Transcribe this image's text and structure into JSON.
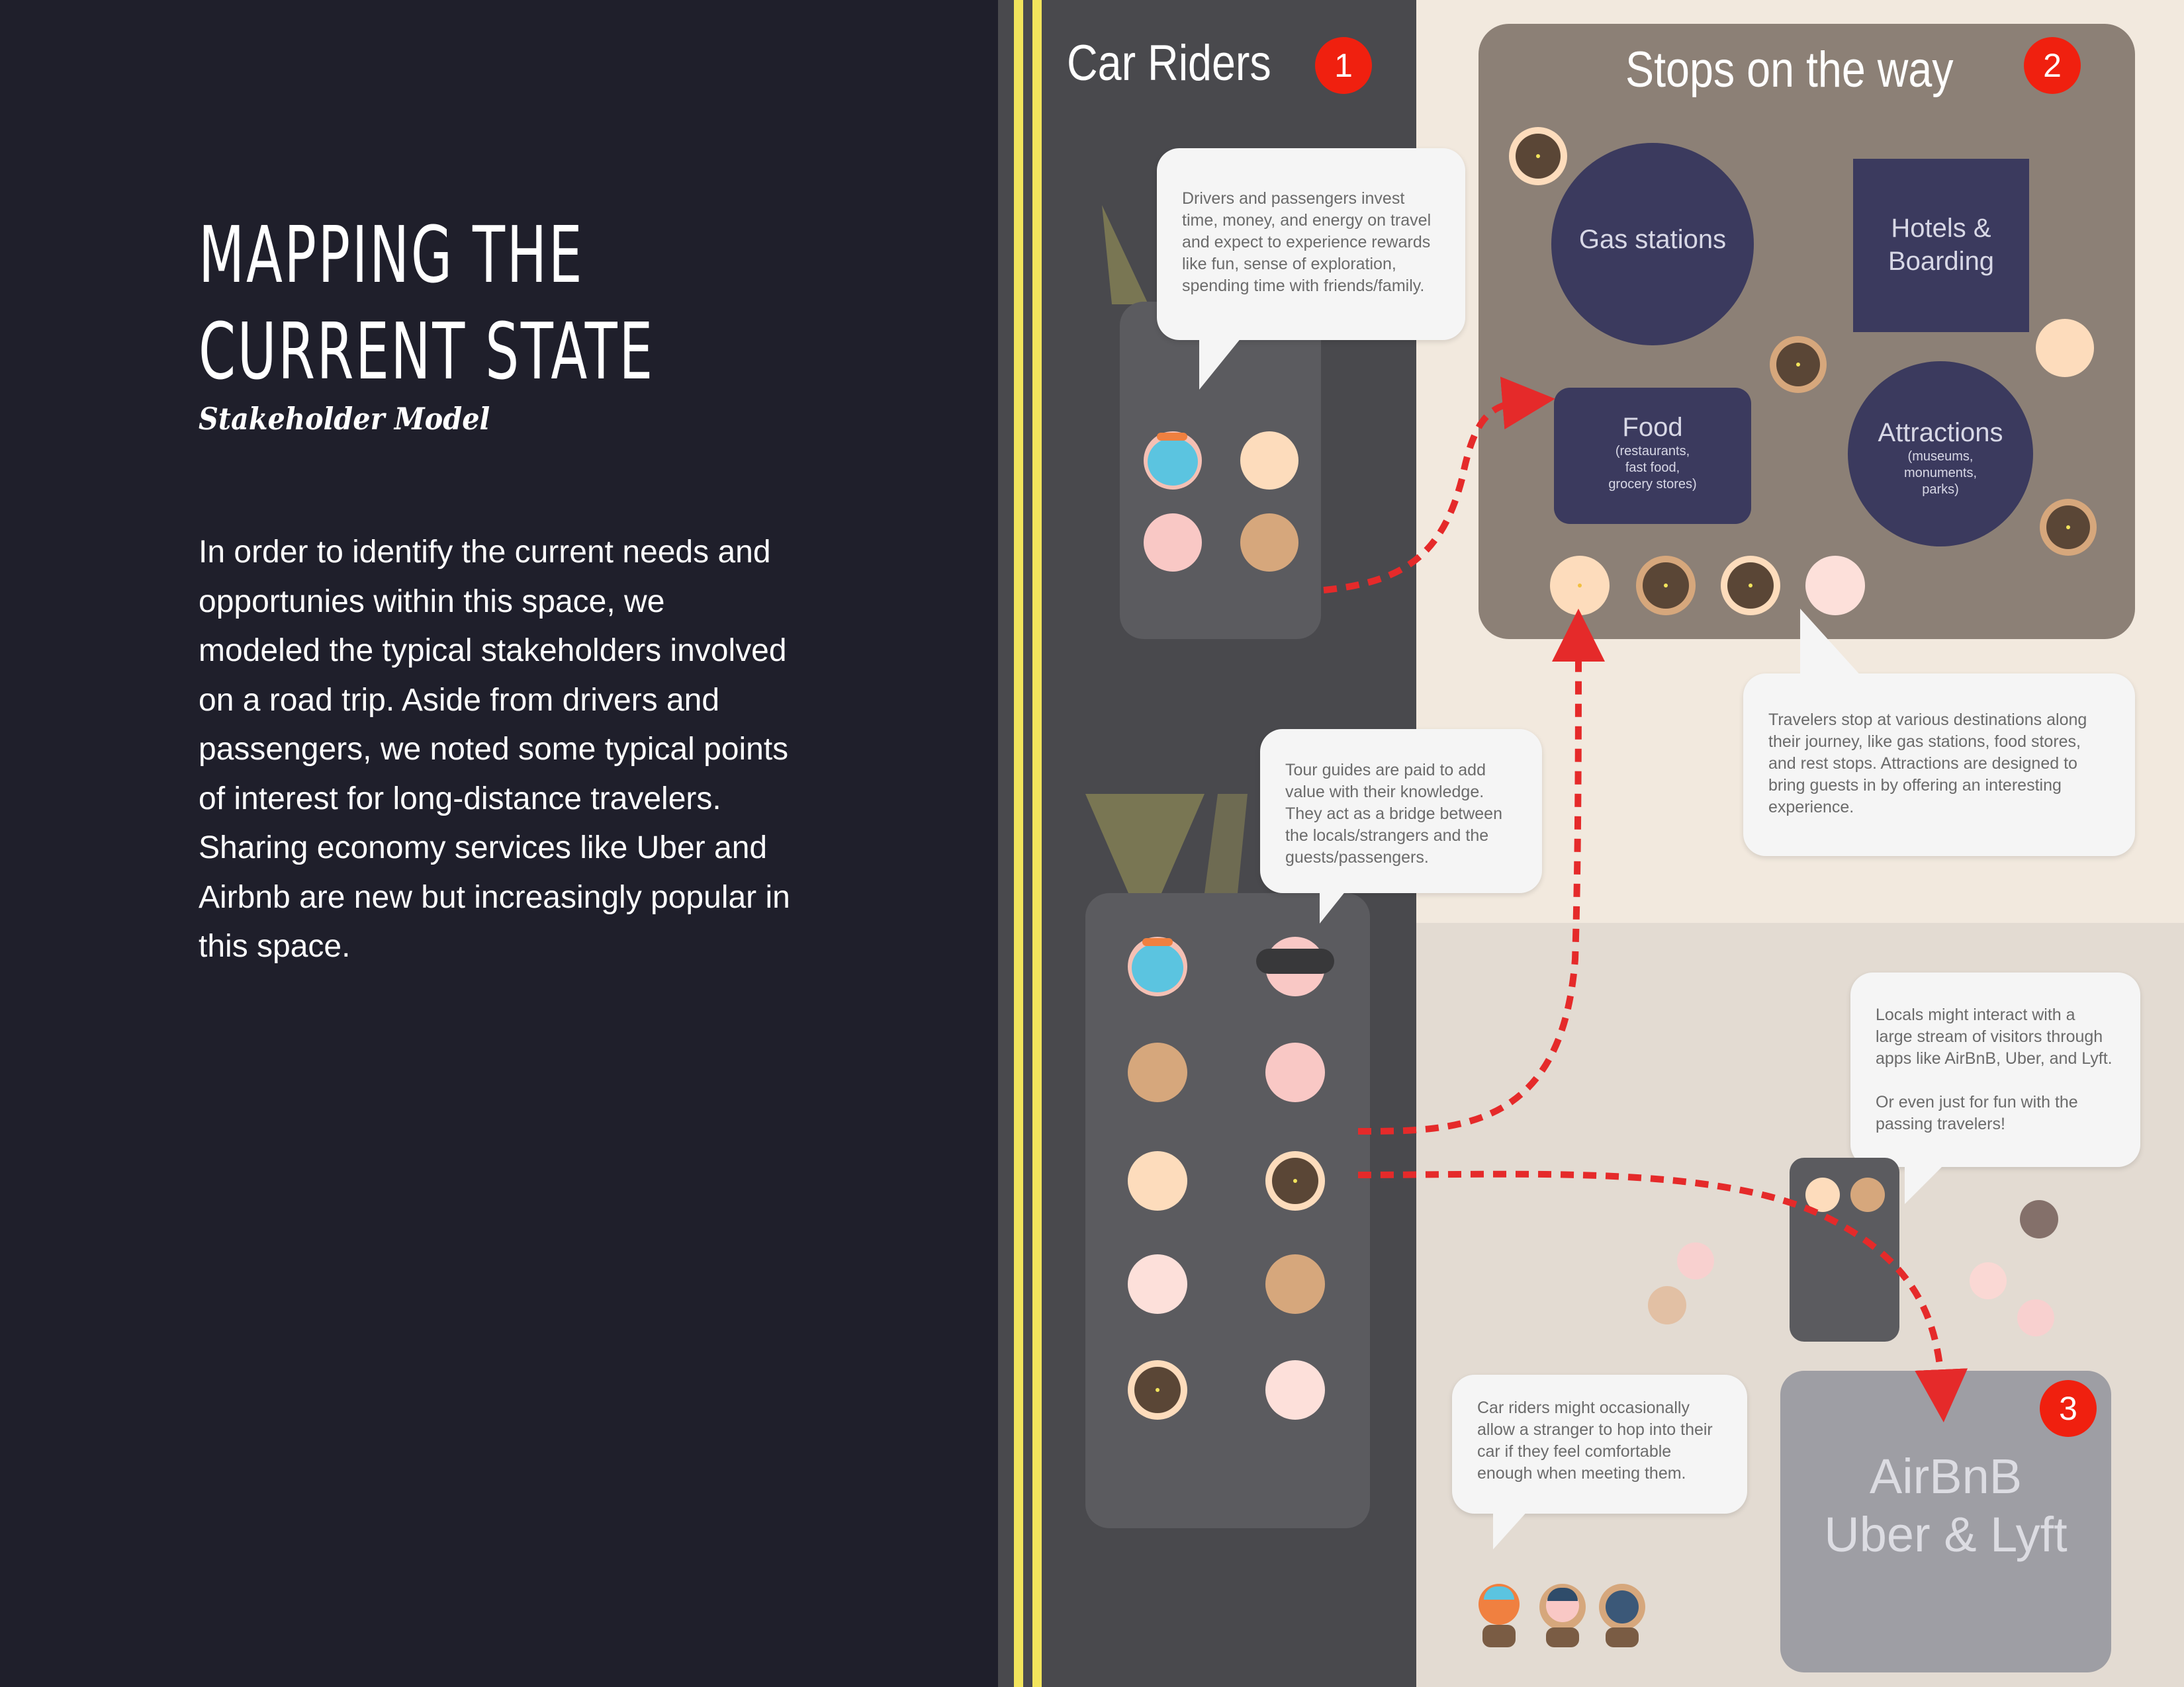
{
  "page": {
    "title_line1": "MAPPING THE",
    "title_line2": "CURRENT STATE",
    "subtitle": "Stakeholder Model",
    "body": "In order to identify the current needs and opportunies within this space, we modeled the typical stakeholders involved on a road trip. Aside from drivers and passengers, we noted some typical points of interest for long-distance travelers. Sharing economy services like Uber and Airbnb are new but increasingly popular in this space."
  },
  "sections": {
    "car_riders": {
      "label": "Car Riders",
      "badge": "1"
    },
    "stops": {
      "label": "Stops on the way",
      "badge": "2"
    },
    "sharing": {
      "label_line1": "AirBnB",
      "label_line2": "Uber & Lyft",
      "badge": "3"
    }
  },
  "stops": {
    "gas": "Gas stations",
    "hotels_line1": "Hotels &",
    "hotels_line2": "Boarding",
    "food": "Food",
    "food_sub1": "(restaurants,",
    "food_sub2": "fast food,",
    "food_sub3": "grocery stores)",
    "attractions": "Attractions",
    "attr_sub1": "(museums,",
    "attr_sub2": "monuments,",
    "attr_sub3": "parks)"
  },
  "bubbles": {
    "riders": "Drivers and passengers invest time, money, and energy on travel and expect to experience rewards like fun, sense of exploration, spending time with friends/family.",
    "guides": "Tour guides are paid to add value with their knowledge. They act as a bridge between the locals/strangers and the guests/passengers.",
    "travelers": "Travelers stop at various destinations along their journey, like gas stations, food stores, and rest stops. Attractions are designed to bring guests in by offering an interesting experience.",
    "locals_p1": "Locals might interact with a large stream of visitors through apps like AirBnB, Uber, and Lyft.",
    "locals_p2": "Or even just for fun with the passing travelers!",
    "strangers": "Car riders might occasionally allow a stranger to hop into their car if they feel comfortable enough when meeting them."
  },
  "colors": {
    "background_dark": "#1f1f2b",
    "road": "#49494d",
    "road_stripe": "#f2e45c",
    "cream": "#f2e9de",
    "stop_area": "#8c8076",
    "stop_box": "#3b3a5e",
    "sharing_box": "#9e9ea4",
    "badge": "#f0200f",
    "arrow": "#e52a2a"
  }
}
